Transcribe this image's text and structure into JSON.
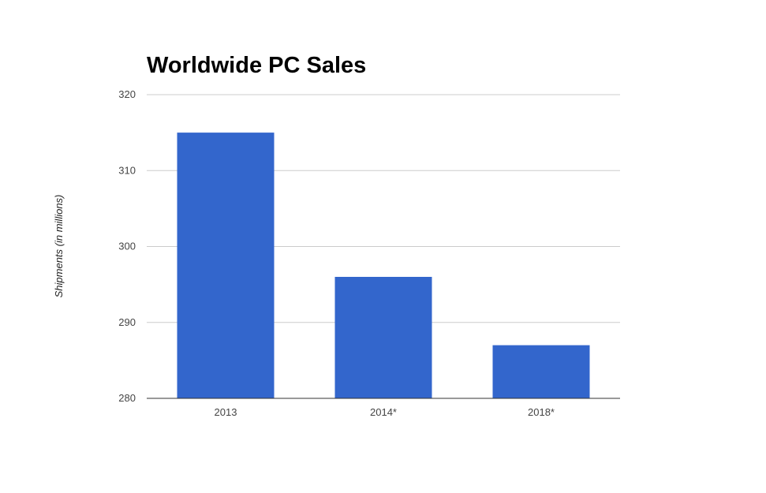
{
  "chart_data": {
    "type": "bar",
    "title": "Worldwide PC Sales",
    "xlabel": "",
    "ylabel": "Shipments (in millions)",
    "categories": [
      "2013",
      "2014*",
      "2018*"
    ],
    "values": [
      315,
      296,
      287
    ],
    "ylim": [
      280,
      320
    ],
    "yticks": [
      280,
      290,
      300,
      310,
      320
    ],
    "grid": true,
    "legend": "none",
    "bar_color": "#3366cc",
    "grid_color": "#cccccc",
    "axis_color": "#333333"
  }
}
